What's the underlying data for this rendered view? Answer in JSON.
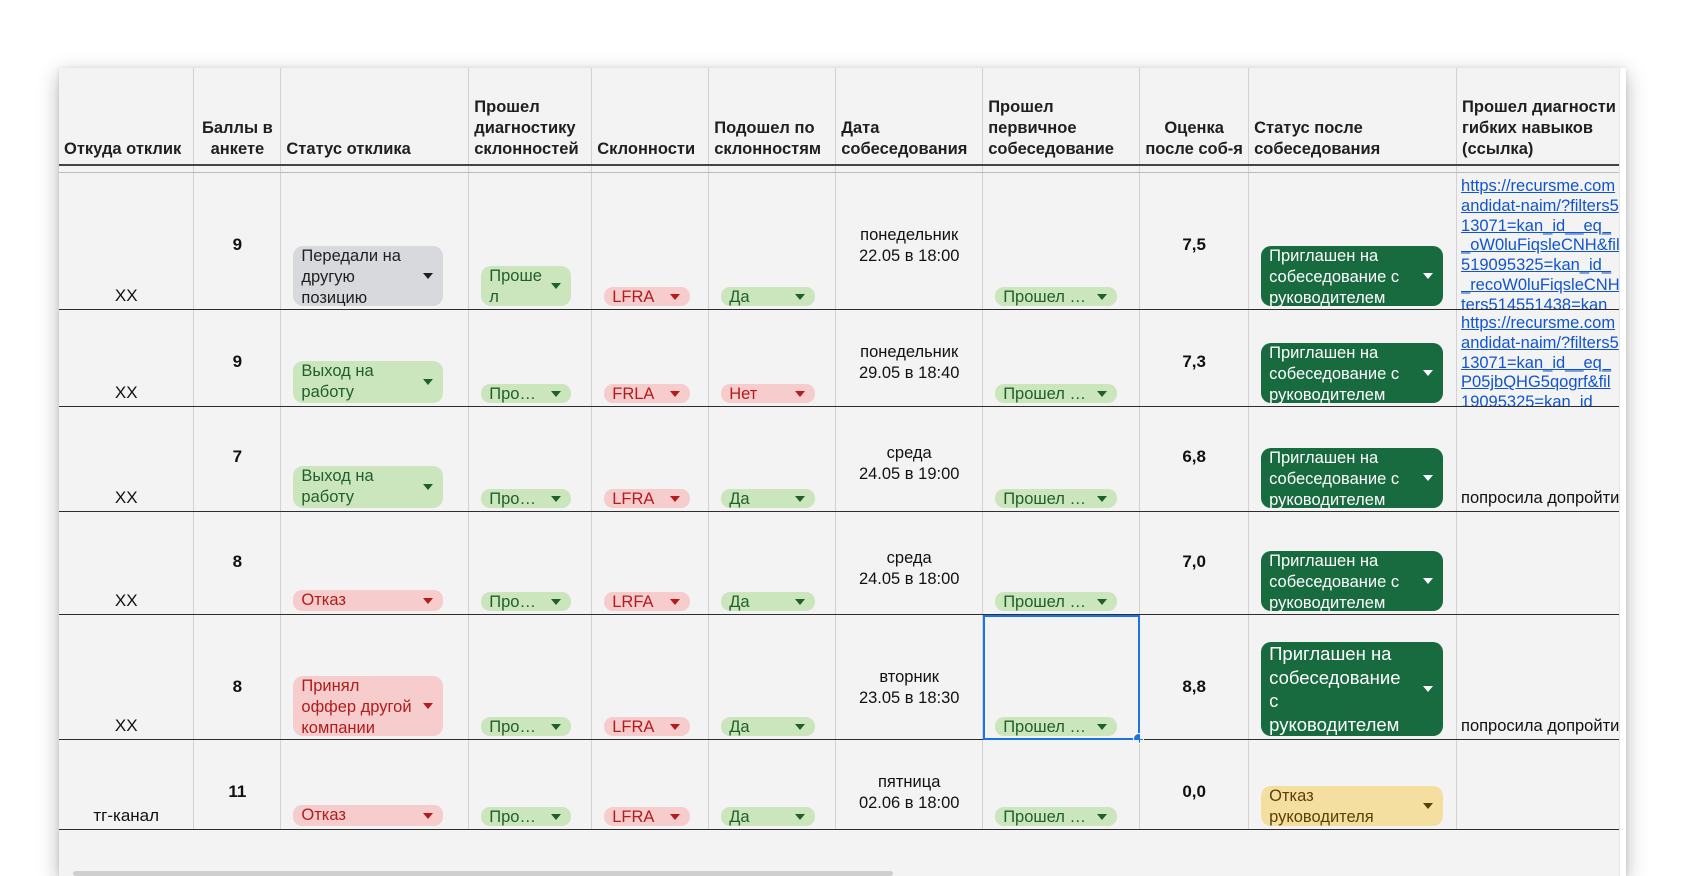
{
  "headers": [
    "Откуда отклик",
    "Баллы в анкете",
    "Статус отклика",
    "Прошел диагностику склонностей",
    "Склонности",
    "Подошел по склонностям",
    "Дата собеседования",
    "Прошел первичное собеседование",
    "Оценка после соб-я",
    "Статус после собеседования",
    "Прошел диагности гибких навыков (ссылка)"
  ],
  "rows": [
    {
      "source": "XX",
      "score": "9",
      "status": "Передали на другую позицию",
      "diag": "Проше л",
      "tend": "LFRA",
      "fit": "Да",
      "date": "понедельник\n22.05 в 18:00",
      "first": "Прошел …",
      "rating": "7,5",
      "after": "Приглашен на собеседование с руководителем",
      "link": "https://recursme.com\nandidat-naim/?filters5\n13071=kan_id__eq_\n_oW0luFiqsleCNH&fil\n519095325=kan_id_\n_recoW0luFiqsleCNH\nters514551438=kan_",
      "note": ""
    },
    {
      "source": "XX",
      "score": "9",
      "status": "Выход на работу",
      "diag": "Про…",
      "tend": "FRLA",
      "fit": "Нет",
      "date": "понедельник\n29.05 в 18:40",
      "first": "Прошел …",
      "rating": "7,3",
      "after": "Приглашен на собеседование с руководителем",
      "link": "https://recursme.com\nandidat-naim/?filters5\n13071=kan_id__eq_\nP05jbQHG5qogrf&fil\n19095325=kan_id_",
      "note": ""
    },
    {
      "source": "XX",
      "score": "7",
      "status": "Выход на работу",
      "diag": "Про…",
      "tend": "LFRA",
      "fit": "Да",
      "date": "среда\n24.05 в 19:00",
      "first": "Прошел …",
      "rating": "6,8",
      "after": "Приглашен на собеседование с руководителем",
      "link": "",
      "note": "попросила допройти"
    },
    {
      "source": "XX",
      "score": "8",
      "status": "Отказ",
      "diag": "Про…",
      "tend": "LRFA",
      "fit": "Да",
      "date": "среда\n24.05 в 18:00",
      "first": "Прошел …",
      "rating": "7,0",
      "after": "Приглашен на собеседование с руководителем",
      "link": "",
      "note": ""
    },
    {
      "source": "XX",
      "score": "8",
      "status": "Принял оффер другой компании",
      "diag": "Про…",
      "tend": "LFRA",
      "fit": "Да",
      "date": "вторник\n23.05 в 18:30",
      "first": "Прошел …",
      "rating": "8,8",
      "after": "Приглашен на собеседование с руководителем",
      "link": "",
      "note": "попросила допройти"
    },
    {
      "source": "тг-канал",
      "score": "11",
      "status": "Отказ",
      "diag": "Про…",
      "tend": "LFRA",
      "fit": "Да",
      "date": "пятница\n02.06 в 18:00",
      "first": "Прошел …",
      "rating": "0,0",
      "after": "Отказ руководителя",
      "link": "",
      "note": ""
    }
  ],
  "colors": {
    "chip_gray": "#d7d9dc",
    "chip_light_green": "#cbe6bd",
    "chip_light_red": "#f6cccc",
    "chip_dark_green": "#176b3f",
    "chip_yellow": "#f5dfa0",
    "selection": "#1a73e8",
    "link": "#1155cc"
  },
  "icons": [
    "dropdown-arrow-icon"
  ]
}
